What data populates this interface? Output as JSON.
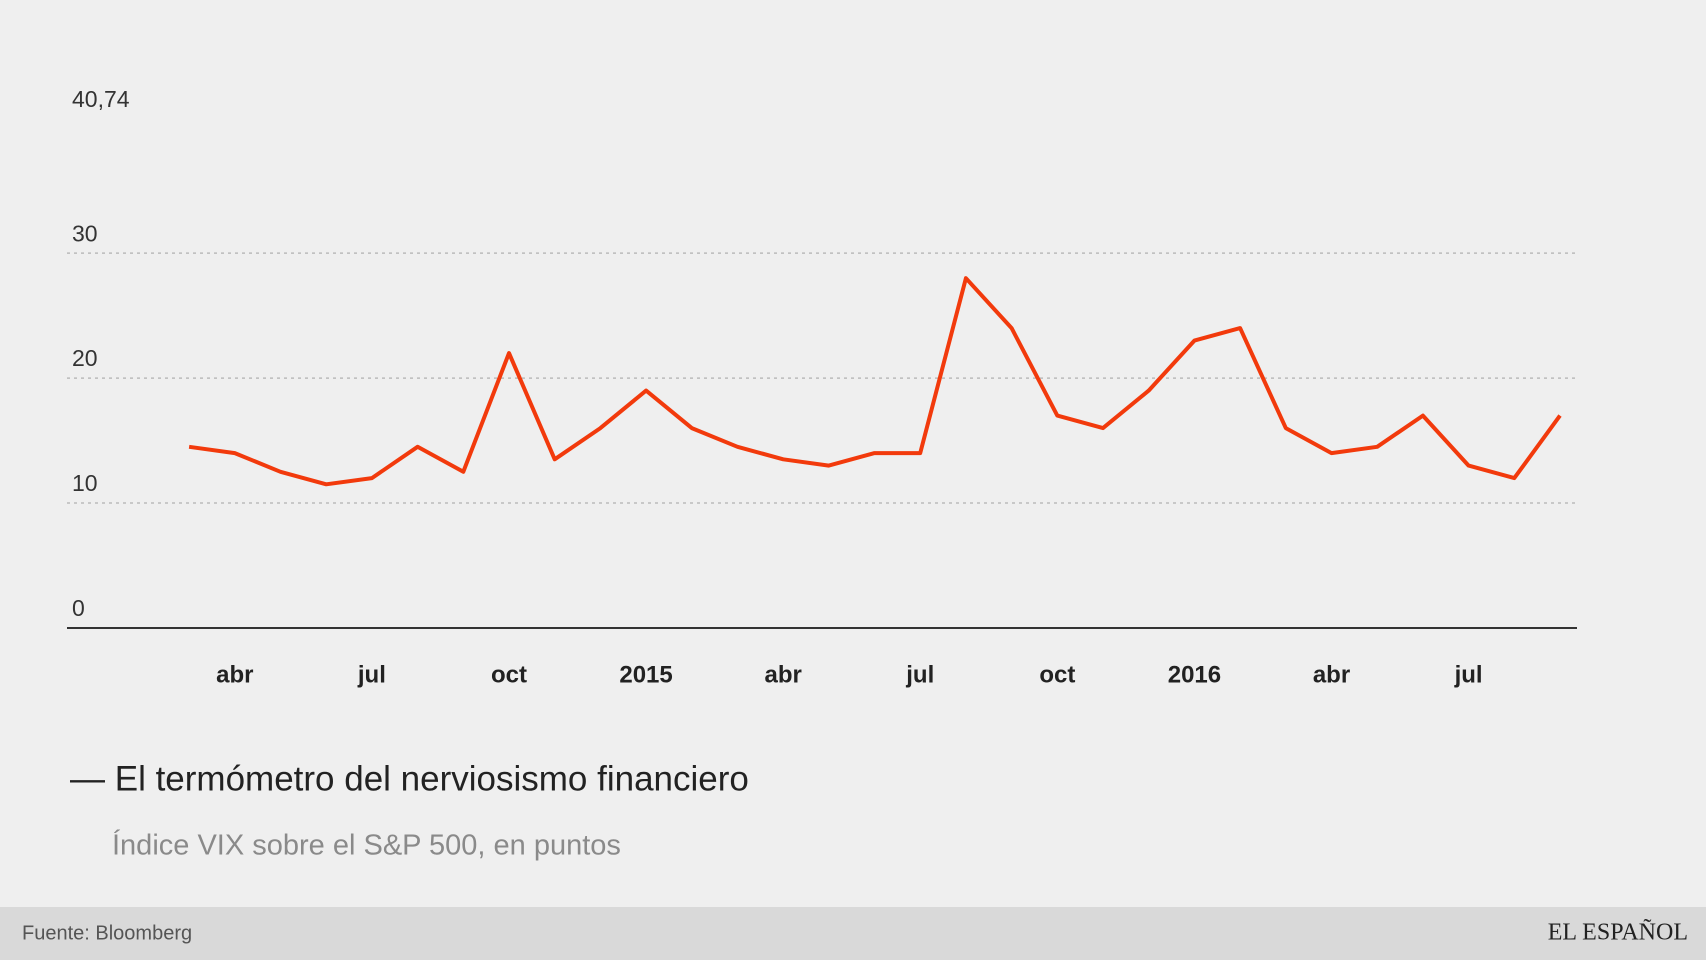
{
  "chart_data": {
    "type": "line",
    "title": "— El termómetro del nerviosismo financiero",
    "subtitle": "Índice VIX sobre el S&P 500, en puntos",
    "source": "Fuente: Bloomberg",
    "brand": "EL ESPAÑOL",
    "x": [
      "2014-03",
      "2014-04",
      "2014-05",
      "2014-06",
      "2014-07",
      "2014-08",
      "2014-09",
      "2014-10",
      "2014-11",
      "2014-12",
      "2015-01",
      "2015-02",
      "2015-03",
      "2015-04",
      "2015-05",
      "2015-06",
      "2015-07",
      "2015-08",
      "2015-09",
      "2015-10",
      "2015-11",
      "2015-12",
      "2016-01",
      "2016-02",
      "2016-03",
      "2016-04",
      "2016-05",
      "2016-06",
      "2016-07",
      "2016-08",
      "2016-09"
    ],
    "series": [
      {
        "name": "VIX",
        "color": "#f23a0c",
        "values": [
          14.5,
          14,
          12.5,
          11.5,
          12,
          14.5,
          12.5,
          22,
          13.5,
          16,
          19,
          16,
          14.5,
          13.5,
          13,
          14,
          14,
          28,
          24,
          17,
          16,
          19,
          23,
          24,
          16,
          14,
          14.5,
          17,
          13,
          12,
          17
        ]
      }
    ],
    "xlim": [
      "2013-12",
      "2016-09"
    ],
    "xticks": [
      {
        "value": "2014-04",
        "label": "abr"
      },
      {
        "value": "2014-07",
        "label": "jul"
      },
      {
        "value": "2014-10",
        "label": "oct"
      },
      {
        "value": "2015-01",
        "label": "2015"
      },
      {
        "value": "2015-04",
        "label": "abr"
      },
      {
        "value": "2015-07",
        "label": "jul"
      },
      {
        "value": "2015-10",
        "label": "oct"
      },
      {
        "value": "2016-01",
        "label": "2016"
      },
      {
        "value": "2016-04",
        "label": "abr"
      },
      {
        "value": "2016-07",
        "label": "jul"
      }
    ],
    "ylim": [
      0,
      40.74
    ],
    "yticks": [
      0,
      10,
      20,
      30,
      {
        "value": 40.74,
        "label": "40,74"
      }
    ],
    "grid": true
  }
}
